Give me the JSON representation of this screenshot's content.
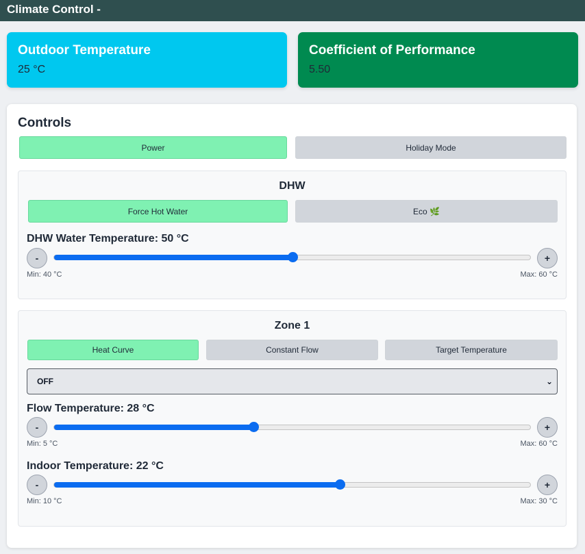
{
  "header": {
    "title": "Climate Control -"
  },
  "cards": {
    "outdoor": {
      "title": "Outdoor Temperature",
      "value": "25 °C",
      "color": "#00c8ef"
    },
    "cop": {
      "title": "Coefficient of Performance",
      "value": "5.50",
      "color": "#008a50"
    }
  },
  "controls": {
    "title": "Controls",
    "power_label": "Power",
    "power_on": true,
    "holiday_label": "Holiday Mode",
    "holiday_on": false
  },
  "dhw": {
    "title": "DHW",
    "force_label": "Force Hot Water",
    "force_on": true,
    "eco_label": "Eco 🌿",
    "eco_on": false,
    "slider": {
      "label": "DHW Water Temperature: 50 °C",
      "value": 50,
      "min": 40,
      "max": 60,
      "min_label": "Min: 40 °C",
      "max_label": "Max: 60 °C"
    }
  },
  "zone1": {
    "title": "Zone 1",
    "modes": [
      {
        "label": "Heat Curve",
        "on": true
      },
      {
        "label": "Constant Flow",
        "on": false
      },
      {
        "label": "Target Temperature",
        "on": false
      }
    ],
    "select_value": "OFF",
    "flow": {
      "label": "Flow Temperature: 28 °C",
      "value": 28,
      "min": 5,
      "max": 60,
      "min_label": "Min: 5 °C",
      "max_label": "Max: 60 °C"
    },
    "indoor": {
      "label": "Indoor Temperature: 22 °C",
      "value": 22,
      "min": 10,
      "max": 30,
      "min_label": "Min: 10 °C",
      "max_label": "Max: 30 °C"
    }
  },
  "buttons": {
    "minus": "-",
    "plus": "+"
  },
  "colors": {
    "active": "#7ff1b2",
    "inactive": "#d1d5db",
    "slider": "#0b6cf0",
    "header": "#2f4f4f"
  }
}
